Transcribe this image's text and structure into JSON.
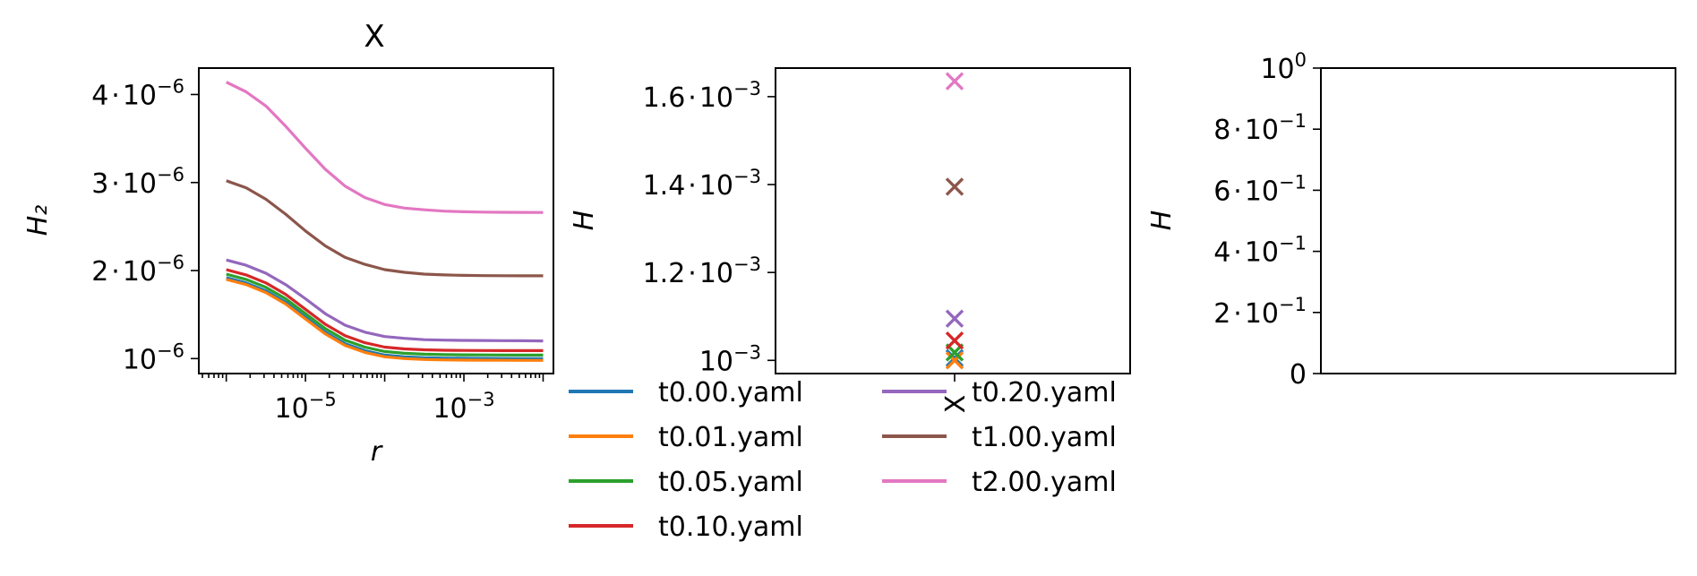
{
  "chart_data": [
    {
      "type": "line",
      "title": "X",
      "xlabel": "r",
      "ylabel": "H₂",
      "xscale": "log",
      "xlim": [
        4.5e-07,
        0.0135
      ],
      "ylim": [
        8.3e-07,
        4.3e-06
      ],
      "x": [
        1e-06,
        1.78e-06,
        3.16e-06,
        5.62e-06,
        1e-05,
        1.78e-05,
        3.16e-05,
        5.62e-05,
        0.0001,
        0.000178,
        0.000316,
        0.000562,
        0.001,
        0.00178,
        0.00316,
        0.00562,
        0.01
      ],
      "series": [
        {
          "name": "t0.00.yaml",
          "color": "#1f77b4",
          "values": [
            1.92e-06,
            1.86e-06,
            1.77e-06,
            1.64e-06,
            1.47e-06,
            1.3e-06,
            1.17e-06,
            1.09e-06,
            1.04e-06,
            1.02e-06,
            1.01e-06,
            1.005e-06,
            1.003e-06,
            1.002e-06,
            1.001e-06,
            1e-06,
            1e-06
          ]
        },
        {
          "name": "t0.01.yaml",
          "color": "#ff7f0e",
          "values": [
            1.9e-06,
            1.84e-06,
            1.75e-06,
            1.62e-06,
            1.45e-06,
            1.28e-06,
            1.15e-06,
            1.07e-06,
            1.02e-06,
            1e-06,
            9.9e-07,
            9.85e-07,
            9.83e-07,
            9.82e-07,
            9.81e-07,
            9.8e-07,
            9.8e-07
          ]
        },
        {
          "name": "t0.05.yaml",
          "color": "#2ca02c",
          "values": [
            1.96e-06,
            1.9e-06,
            1.81e-06,
            1.68e-06,
            1.51e-06,
            1.34e-06,
            1.21e-06,
            1.13e-06,
            1.08e-06,
            1.06e-06,
            1.05e-06,
            1.045e-06,
            1.043e-06,
            1.042e-06,
            1.041e-06,
            1.04e-06,
            1.04e-06
          ]
        },
        {
          "name": "t0.10.yaml",
          "color": "#d62728",
          "values": [
            2.01e-06,
            1.95e-06,
            1.86e-06,
            1.73e-06,
            1.56e-06,
            1.39e-06,
            1.26e-06,
            1.18e-06,
            1.13e-06,
            1.11e-06,
            1.1e-06,
            1.095e-06,
            1.093e-06,
            1.092e-06,
            1.091e-06,
            1.09e-06,
            1.09e-06
          ]
        },
        {
          "name": "t0.20.yaml",
          "color": "#9467bd",
          "values": [
            2.12e-06,
            2.06e-06,
            1.97e-06,
            1.84e-06,
            1.68e-06,
            1.51e-06,
            1.38e-06,
            1.3e-06,
            1.25e-06,
            1.23e-06,
            1.215e-06,
            1.21e-06,
            1.207e-06,
            1.205e-06,
            1.203e-06,
            1.202e-06,
            1.2e-06
          ]
        },
        {
          "name": "t1.00.yaml",
          "color": "#8c564b",
          "values": [
            3.02e-06,
            2.94e-06,
            2.81e-06,
            2.64e-06,
            2.45e-06,
            2.28e-06,
            2.15e-06,
            2.07e-06,
            2.01e-06,
            1.98e-06,
            1.96e-06,
            1.95e-06,
            1.945e-06,
            1.942e-06,
            1.941e-06,
            1.94e-06,
            1.94e-06
          ]
        },
        {
          "name": "t2.00.yaml",
          "color": "#e377c2",
          "values": [
            4.14e-06,
            4.03e-06,
            3.87e-06,
            3.64e-06,
            3.39e-06,
            3.15e-06,
            2.96e-06,
            2.83e-06,
            2.75e-06,
            2.71e-06,
            2.69e-06,
            2.675e-06,
            2.668e-06,
            2.664e-06,
            2.662e-06,
            2.661e-06,
            2.66e-06
          ]
        }
      ]
    },
    {
      "type": "scatter",
      "xlabel": "",
      "ylabel": "H",
      "categories": [
        "X"
      ],
      "ylim": [
        0.00097,
        0.001665
      ],
      "series": [
        {
          "name": "t0.00.yaml",
          "color": "#1f77b4",
          "values": [
            0.001005
          ]
        },
        {
          "name": "t0.01.yaml",
          "color": "#ff7f0e",
          "values": [
            0.001
          ]
        },
        {
          "name": "t0.05.yaml",
          "color": "#2ca02c",
          "values": [
            0.001018
          ]
        },
        {
          "name": "t0.10.yaml",
          "color": "#d62728",
          "values": [
            0.001045
          ]
        },
        {
          "name": "t0.20.yaml",
          "color": "#9467bd",
          "values": [
            0.001095
          ]
        },
        {
          "name": "t1.00.yaml",
          "color": "#8c564b",
          "values": [
            0.001395
          ]
        },
        {
          "name": "t2.00.yaml",
          "color": "#e377c2",
          "values": [
            0.001635
          ]
        }
      ]
    },
    {
      "type": "scatter",
      "xlabel": "",
      "ylabel": "H",
      "ylim": [
        0,
        1
      ],
      "series": []
    }
  ],
  "axis_text": {
    "p1_yticks": [
      {
        "mant": "4",
        "sep": "·",
        "base": "10",
        "exp": "−6",
        "value": 4e-06
      },
      {
        "mant": "3",
        "sep": "·",
        "base": "10",
        "exp": "−6",
        "value": 3e-06
      },
      {
        "mant": "2",
        "sep": "·",
        "base": "10",
        "exp": "−6",
        "value": 2e-06
      },
      {
        "mant": "",
        "sep": "",
        "base": "10",
        "exp": "−6",
        "value": 1e-06
      }
    ],
    "p1_xticks": [
      {
        "base": "10",
        "exp": "−5",
        "value": 1e-05
      },
      {
        "base": "10",
        "exp": "−3",
        "value": 0.001
      }
    ],
    "p2_yticks": [
      {
        "mant": "1.6",
        "sep": "·",
        "base": "10",
        "exp": "−3",
        "value": 0.0016
      },
      {
        "mant": "1.4",
        "sep": "·",
        "base": "10",
        "exp": "−3",
        "value": 0.0014
      },
      {
        "mant": "1.2",
        "sep": "·",
        "base": "10",
        "exp": "−3",
        "value": 0.0012
      },
      {
        "mant": "",
        "sep": "",
        "base": "10",
        "exp": "−3",
        "value": 0.001
      }
    ],
    "p2_xticks": [
      {
        "label": "X"
      }
    ],
    "p3_yticks": [
      {
        "mant": "",
        "sep": "",
        "base": "10",
        "exp": "0",
        "value": 1.0
      },
      {
        "mant": "8",
        "sep": "·",
        "base": "10",
        "exp": "−1",
        "value": 0.8
      },
      {
        "mant": "6",
        "sep": "·",
        "base": "10",
        "exp": "−1",
        "value": 0.6
      },
      {
        "mant": "4",
        "sep": "·",
        "base": "10",
        "exp": "−1",
        "value": 0.4
      },
      {
        "mant": "2",
        "sep": "·",
        "base": "10",
        "exp": "−1",
        "value": 0.2
      },
      {
        "mant": "0",
        "sep": "",
        "base": "",
        "exp": "",
        "value": 0
      }
    ]
  },
  "legend": {
    "placement": "below-center-panel",
    "columns": 2,
    "entries": [
      {
        "label": "t0.00.yaml",
        "color": "#1f77b4"
      },
      {
        "label": "t0.01.yaml",
        "color": "#ff7f0e"
      },
      {
        "label": "t0.05.yaml",
        "color": "#2ca02c"
      },
      {
        "label": "t0.10.yaml",
        "color": "#d62728"
      },
      {
        "label": "t0.20.yaml",
        "color": "#9467bd"
      },
      {
        "label": "t1.00.yaml",
        "color": "#8c564b"
      },
      {
        "label": "t2.00.yaml",
        "color": "#e377c2"
      }
    ]
  }
}
